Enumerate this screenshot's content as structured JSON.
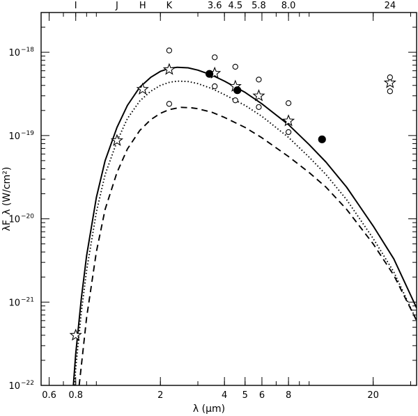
{
  "chart_data": {
    "type": "scatter",
    "title": "",
    "xlabel": "λ (μm)",
    "ylabel": "λF_λ (W/cm²)",
    "xscale": "log",
    "yscale": "log",
    "xlim": [
      0.55,
      32
    ],
    "ylim": [
      1e-22,
      3e-18
    ],
    "x_ticks": [
      {
        "value": 0.6,
        "label": "0.6"
      },
      {
        "value": 0.8,
        "label": "0.8"
      },
      {
        "value": 2,
        "label": "2"
      },
      {
        "value": 4,
        "label": "4"
      },
      {
        "value": 5,
        "label": "5"
      },
      {
        "value": 6,
        "label": "6"
      },
      {
        "value": 8,
        "label": "8"
      },
      {
        "value": 20,
        "label": "20"
      }
    ],
    "y_ticks": [
      {
        "value": 1e-22,
        "mant": "10",
        "exp": "−22"
      },
      {
        "value": 1e-21,
        "mant": "10",
        "exp": "−21"
      },
      {
        "value": 1e-20,
        "mant": "10",
        "exp": "−20"
      },
      {
        "value": 1e-19,
        "mant": "10",
        "exp": "−19"
      },
      {
        "value": 1e-18,
        "mant": "10",
        "exp": "−18"
      }
    ],
    "bands": [
      {
        "label": "I",
        "x": 0.8
      },
      {
        "label": "J",
        "x": 1.25
      },
      {
        "label": "H",
        "x": 1.65
      },
      {
        "label": "K",
        "x": 2.2
      },
      {
        "label": "3.6",
        "x": 3.6
      },
      {
        "label": "4.5",
        "x": 4.5
      },
      {
        "label": "5.8",
        "x": 5.8
      },
      {
        "label": "8.0",
        "x": 8.0
      },
      {
        "label": "24",
        "x": 24
      }
    ],
    "series": [
      {
        "marker": "star",
        "points": [
          {
            "x": 0.8,
            "y": 4e-22
          },
          {
            "x": 1.25,
            "y": 8.7e-20
          },
          {
            "x": 1.65,
            "y": 3.6e-19
          },
          {
            "x": 2.2,
            "y": 6.2e-19
          },
          {
            "x": 3.6,
            "y": 5.6e-19
          },
          {
            "x": 4.5,
            "y": 3.9e-19
          },
          {
            "x": 5.8,
            "y": 3e-19
          },
          {
            "x": 8.0,
            "y": 1.5e-19
          },
          {
            "x": 24,
            "y": 4.3e-19
          }
        ]
      },
      {
        "marker": "open-circle",
        "points": [
          {
            "x": 2.2,
            "y": 1.05e-18
          },
          {
            "x": 2.2,
            "y": 2.4e-19
          },
          {
            "x": 3.6,
            "y": 8.7e-19
          },
          {
            "x": 3.6,
            "y": 3.9e-19
          },
          {
            "x": 4.5,
            "y": 6.7e-19
          },
          {
            "x": 4.5,
            "y": 2.65e-19
          },
          {
            "x": 5.8,
            "y": 4.7e-19
          },
          {
            "x": 5.8,
            "y": 2.2e-19
          },
          {
            "x": 8.0,
            "y": 2.45e-19
          },
          {
            "x": 8.0,
            "y": 1.1e-19
          },
          {
            "x": 24,
            "y": 5e-19
          },
          {
            "x": 24,
            "y": 3.4e-19
          }
        ]
      },
      {
        "marker": "filled-circle",
        "points": [
          {
            "x": 3.4,
            "y": 5.5e-19
          },
          {
            "x": 4.6,
            "y": 3.5e-19
          },
          {
            "x": 11.5,
            "y": 9e-20
          }
        ]
      }
    ],
    "curves": [
      {
        "style": "solid",
        "points": [
          [
            0.78,
            1e-22
          ],
          [
            0.8,
            2.4e-22
          ],
          [
            0.85,
            1.1e-21
          ],
          [
            0.9,
            3.6e-21
          ],
          [
            1.0,
            1.8e-20
          ],
          [
            1.1,
            5e-20
          ],
          [
            1.25,
            1.25e-19
          ],
          [
            1.4,
            2.3e-19
          ],
          [
            1.6,
            3.8e-19
          ],
          [
            1.8,
            5e-19
          ],
          [
            2.0,
            5.9e-19
          ],
          [
            2.2,
            6.4e-19
          ],
          [
            2.4,
            6.6e-19
          ],
          [
            2.7,
            6.5e-19
          ],
          [
            3.0,
            6.1e-19
          ],
          [
            3.5,
            5.3e-19
          ],
          [
            4.0,
            4.5e-19
          ],
          [
            5.0,
            3.3e-19
          ],
          [
            6.0,
            2.4e-19
          ],
          [
            8.0,
            1.35e-19
          ],
          [
            10,
            7.8e-20
          ],
          [
            12,
            4.8e-20
          ],
          [
            15,
            2.4e-20
          ],
          [
            20,
            8.2e-21
          ],
          [
            25,
            3.3e-21
          ],
          [
            32,
            8.5e-22
          ]
        ]
      },
      {
        "style": "dotted",
        "points": [
          [
            0.79,
            1e-22
          ],
          [
            0.8,
            1.6e-22
          ],
          [
            0.85,
            7.5e-22
          ],
          [
            0.9,
            2.4e-21
          ],
          [
            1.0,
            1.2e-20
          ],
          [
            1.1,
            3.4e-20
          ],
          [
            1.25,
            8.5e-20
          ],
          [
            1.4,
            1.6e-19
          ],
          [
            1.6,
            2.6e-19
          ],
          [
            1.8,
            3.4e-19
          ],
          [
            2.0,
            4e-19
          ],
          [
            2.2,
            4.35e-19
          ],
          [
            2.4,
            4.5e-19
          ],
          [
            2.7,
            4.45e-19
          ],
          [
            3.0,
            4.2e-19
          ],
          [
            3.5,
            3.65e-19
          ],
          [
            4.0,
            3.1e-19
          ],
          [
            5.0,
            2.3e-19
          ],
          [
            6.0,
            1.7e-19
          ],
          [
            8.0,
            9.5e-20
          ],
          [
            10,
            5.5e-20
          ],
          [
            12,
            3.4e-20
          ],
          [
            15,
            1.7e-20
          ],
          [
            20,
            5.8e-21
          ],
          [
            25,
            2.3e-21
          ],
          [
            32,
            6e-22
          ]
        ]
      },
      {
        "style": "dashed",
        "points": [
          [
            0.83,
            1e-22
          ],
          [
            0.85,
            1.7e-22
          ],
          [
            0.9,
            6.5e-22
          ],
          [
            1.0,
            4e-21
          ],
          [
            1.1,
            1.3e-20
          ],
          [
            1.25,
            3.6e-20
          ],
          [
            1.4,
            6.9e-20
          ],
          [
            1.6,
            1.15e-19
          ],
          [
            1.8,
            1.55e-19
          ],
          [
            2.0,
            1.85e-19
          ],
          [
            2.2,
            2.05e-19
          ],
          [
            2.5,
            2.18e-19
          ],
          [
            2.8,
            2.15e-19
          ],
          [
            3.0,
            2.1e-19
          ],
          [
            3.5,
            1.9e-19
          ],
          [
            4.0,
            1.65e-19
          ],
          [
            5.0,
            1.25e-19
          ],
          [
            6.0,
            9.4e-20
          ],
          [
            8.0,
            5.6e-20
          ],
          [
            10,
            3.6e-20
          ],
          [
            12,
            2.4e-20
          ],
          [
            15,
            1.3e-20
          ],
          [
            20,
            5e-21
          ],
          [
            25,
            2.1e-21
          ],
          [
            32,
            6e-22
          ]
        ]
      }
    ],
    "grid": false,
    "legend": "none"
  }
}
